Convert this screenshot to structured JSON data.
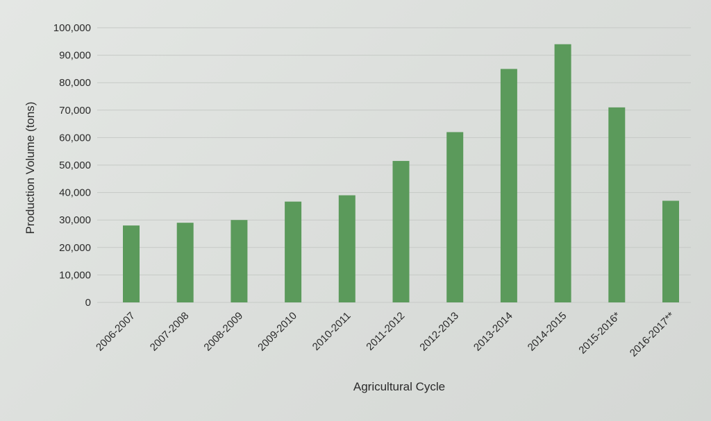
{
  "chart_data": {
    "type": "bar",
    "xlabel": "Agricultural Cycle",
    "ylabel": "Production Volume (tons)",
    "ylim": [
      0,
      100000
    ],
    "yticks": [
      "0",
      "10,000",
      "20,000",
      "30,000",
      "40,000",
      "50,000",
      "60,000",
      "70,000",
      "80,000",
      "90,000",
      "100,000"
    ],
    "grid": true,
    "legend": "none",
    "bar_color": "#5b9a5b",
    "categories": [
      "2006-2007",
      "2007-2008",
      "2008-2009",
      "2009-2010",
      "2010-2011",
      "2011-2012",
      "2012-2013",
      "2013-2014",
      "2014-2015",
      "2015-2016*",
      "2016-2017**"
    ],
    "values": [
      28000,
      29000,
      30000,
      36700,
      39000,
      51500,
      62000,
      85000,
      94000,
      71000,
      37000
    ]
  }
}
